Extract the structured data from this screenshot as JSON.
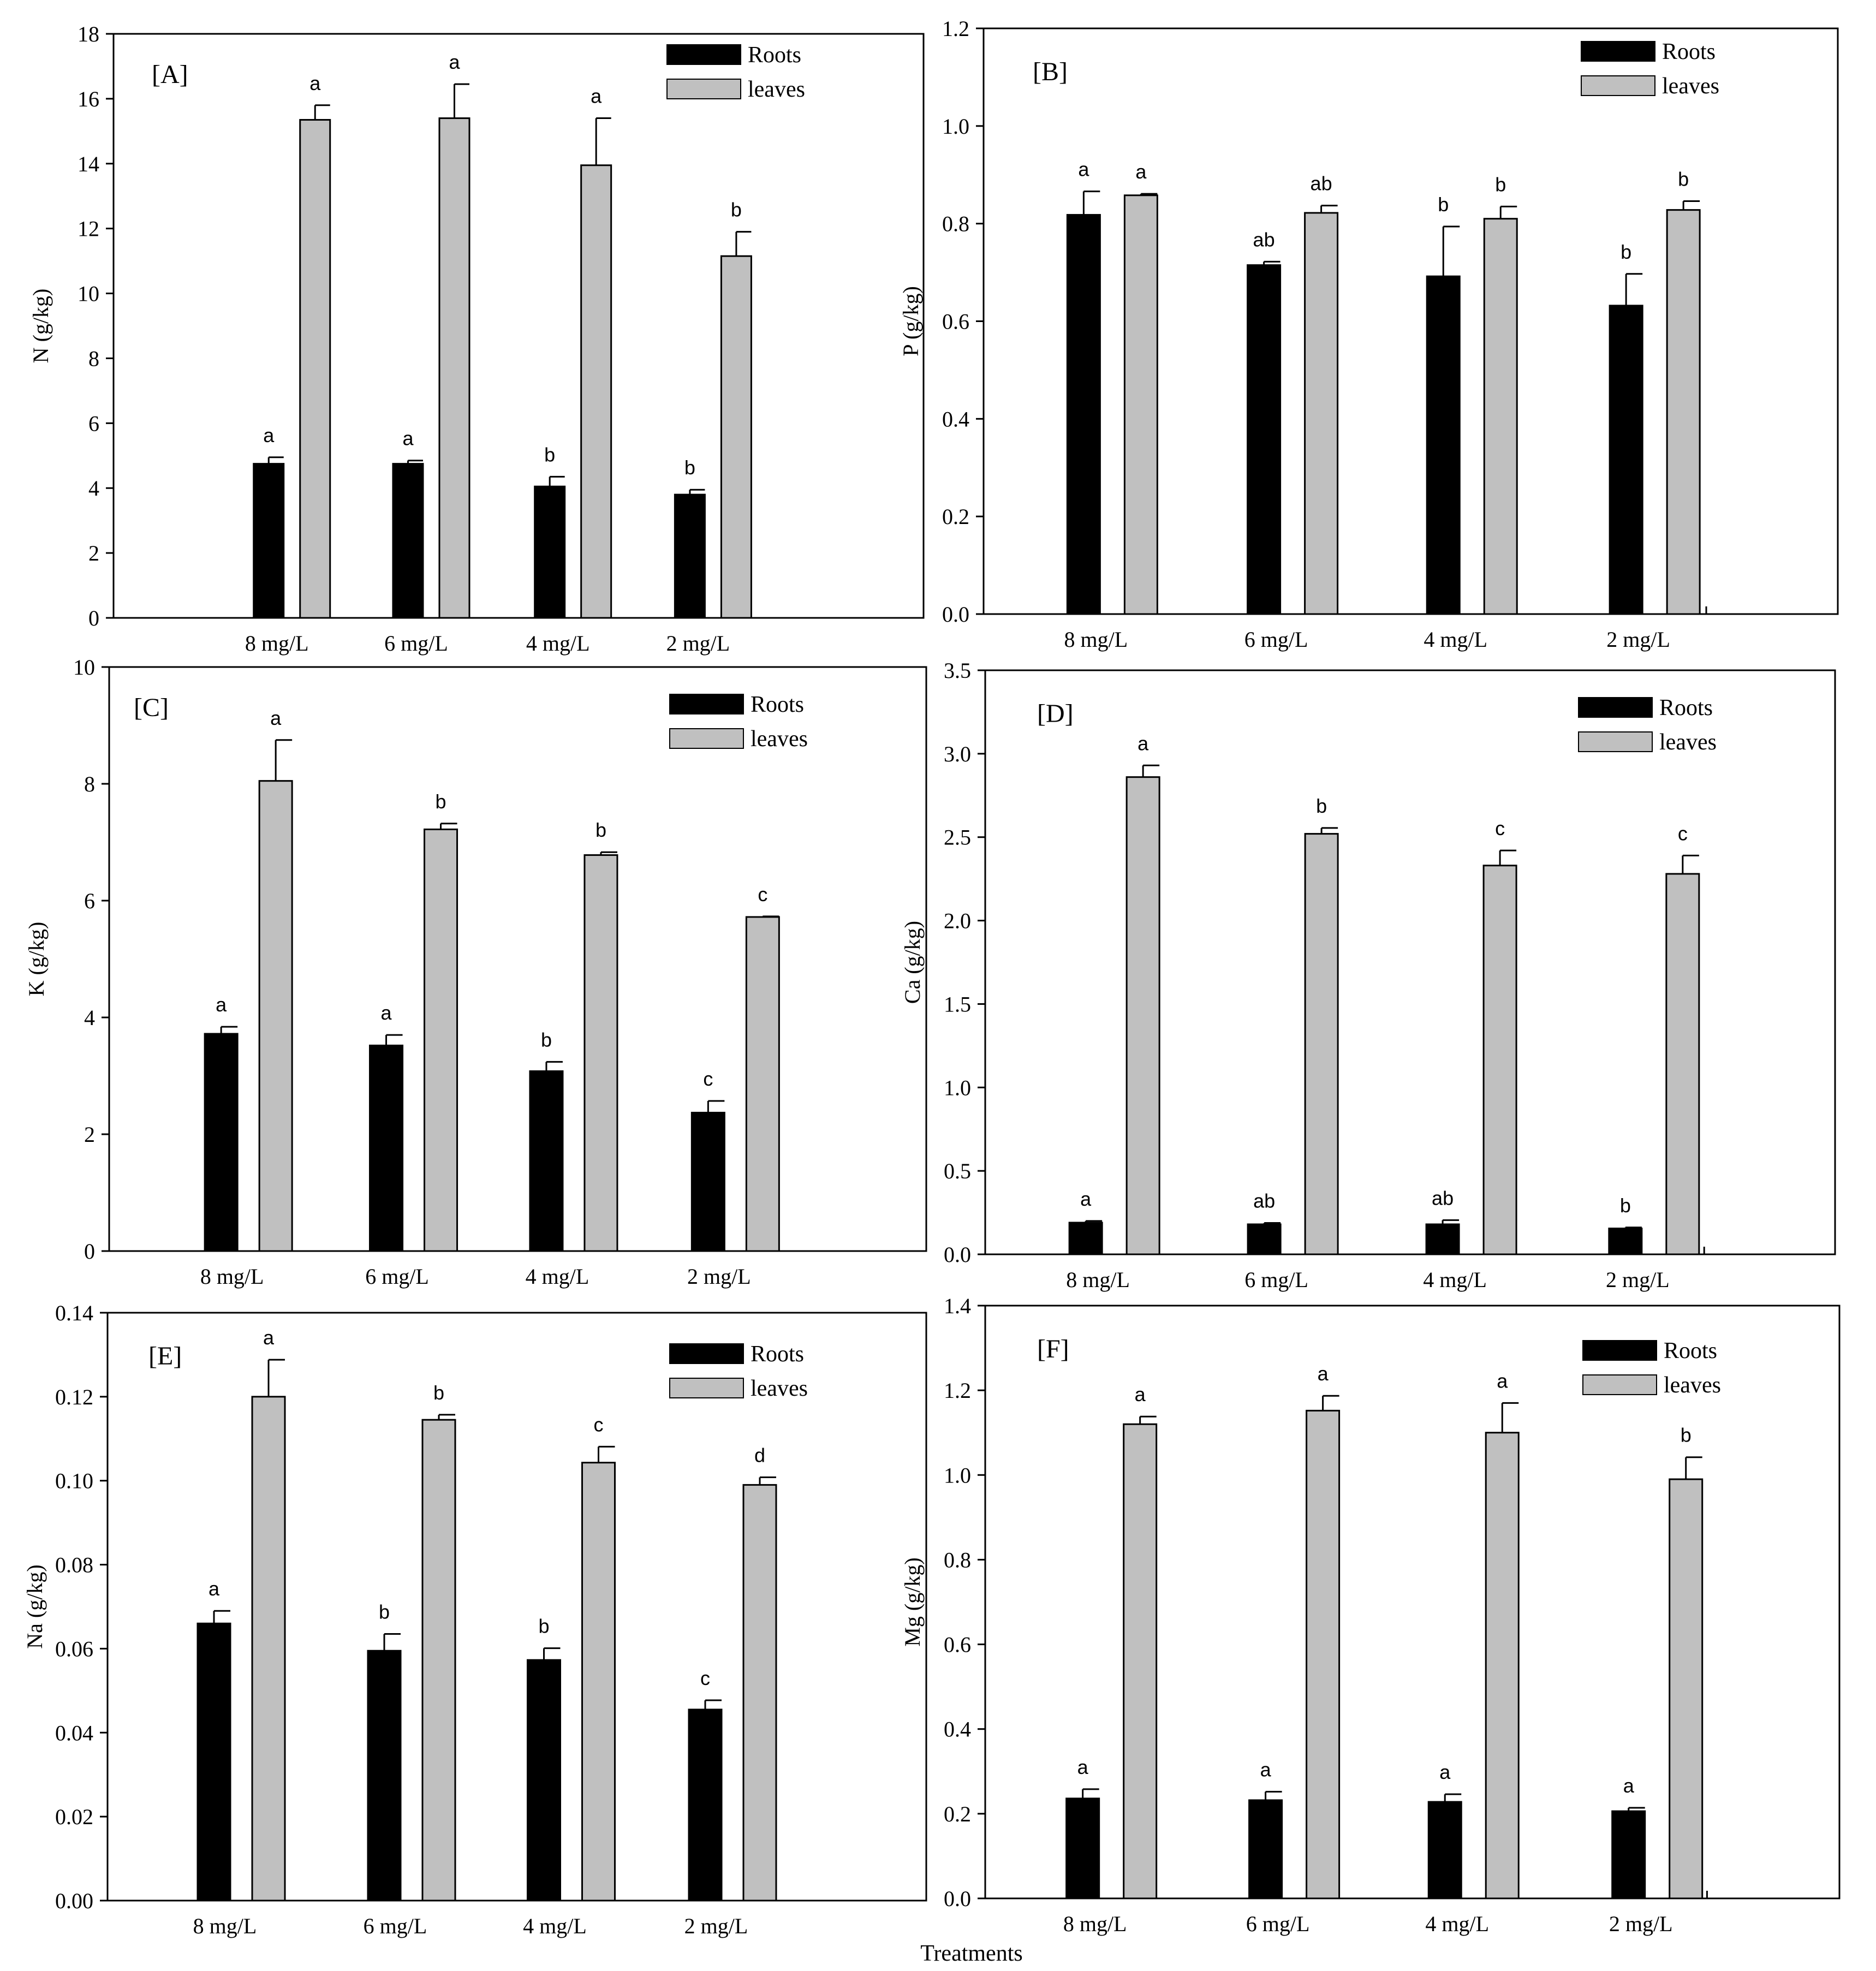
{
  "figure": {
    "x_title": "Treatments",
    "categories": [
      "8 mg/L",
      "6 mg/L",
      "4 mg/L",
      "2 mg/L"
    ],
    "legend": [
      {
        "name": "Roots",
        "color": "#000000"
      },
      {
        "name": "leaves",
        "color": "#c0c0c0"
      }
    ]
  },
  "chart_data": [
    {
      "type": "bar",
      "panel": "[A]",
      "ylabel": "N (g/kg)",
      "ylim": [
        0,
        18
      ],
      "yticks": [
        0,
        2,
        4,
        6,
        8,
        10,
        12,
        14,
        16,
        18
      ],
      "categories": [
        "8 mg/L",
        "6 mg/L",
        "4 mg/L",
        "2 mg/L"
      ],
      "legend_position": "top-right",
      "series": [
        {
          "name": "Roots",
          "values": [
            4.75,
            4.75,
            4.05,
            3.8
          ],
          "errors": [
            0.2,
            0.1,
            0.3,
            0.15
          ],
          "labels": [
            "a",
            "a",
            "b",
            "b"
          ]
        },
        {
          "name": "leaves",
          "values": [
            15.35,
            15.4,
            13.95,
            11.15
          ],
          "errors": [
            0.45,
            1.05,
            1.45,
            0.75
          ],
          "labels": [
            "a",
            "a",
            "a",
            "b"
          ]
        }
      ]
    },
    {
      "type": "bar",
      "panel": "[B]",
      "ylabel": "P (g/kg)",
      "ylim": [
        0,
        1.2
      ],
      "yticks": [
        0.0,
        0.2,
        0.4,
        0.6,
        0.8,
        1.0,
        1.2
      ],
      "ytick_labels": [
        "0.0",
        "0.2",
        "0.4",
        "0.6",
        "0.8",
        "1.0",
        "1.2"
      ],
      "categories": [
        "8 mg/L",
        "6 mg/L",
        "4 mg/L",
        "2 mg/L"
      ],
      "legend_position": "top-right",
      "series": [
        {
          "name": "Roots",
          "values": [
            0.818,
            0.715,
            0.692,
            0.632
          ],
          "errors": [
            0.048,
            0.007,
            0.102,
            0.065
          ],
          "labels": [
            "a",
            "ab",
            "b",
            "b"
          ]
        },
        {
          "name": "leaves",
          "values": [
            0.858,
            0.822,
            0.81,
            0.828
          ],
          "errors": [
            0.003,
            0.015,
            0.025,
            0.018
          ],
          "labels": [
            "a",
            "ab",
            "b",
            "b"
          ]
        }
      ]
    },
    {
      "type": "bar",
      "panel": "[C]",
      "ylabel": "K (g/kg)",
      "ylim": [
        0,
        10
      ],
      "yticks": [
        0,
        2,
        4,
        6,
        8,
        10
      ],
      "categories": [
        "8 mg/L",
        "6 mg/L",
        "4 mg/L",
        "2 mg/L"
      ],
      "legend_position": "top-right",
      "series": [
        {
          "name": "Roots",
          "values": [
            3.72,
            3.52,
            3.08,
            2.37
          ],
          "errors": [
            0.12,
            0.18,
            0.16,
            0.2
          ],
          "labels": [
            "a",
            "a",
            "b",
            "c"
          ]
        },
        {
          "name": "leaves",
          "values": [
            8.05,
            7.22,
            6.78,
            5.72
          ],
          "errors": [
            0.7,
            0.1,
            0.05,
            0.01
          ],
          "labels": [
            "a",
            "b",
            "b",
            "c"
          ]
        }
      ]
    },
    {
      "type": "bar",
      "panel": "[D]",
      "ylabel": "Ca (g/kg)",
      "ylim": [
        0,
        3.5
      ],
      "yticks": [
        0,
        0.5,
        1.0,
        1.5,
        2.0,
        2.5,
        3.0,
        3.5
      ],
      "ytick_labels": [
        "0.0",
        "0.5",
        "1.0",
        "1.5",
        "2.0",
        "2.5",
        "3.0",
        "3.5"
      ],
      "categories": [
        "8 mg/L",
        "6 mg/L",
        "4 mg/L",
        "2 mg/L"
      ],
      "legend_position": "top-right",
      "series": [
        {
          "name": "Roots",
          "values": [
            0.19,
            0.18,
            0.18,
            0.155
          ],
          "errors": [
            0.01,
            0.008,
            0.025,
            0.006
          ],
          "labels": [
            "a",
            "ab",
            "ab",
            "b"
          ]
        },
        {
          "name": "leaves",
          "values": [
            2.86,
            2.52,
            2.33,
            2.28
          ],
          "errors": [
            0.07,
            0.035,
            0.09,
            0.11
          ],
          "labels": [
            "a",
            "b",
            "c",
            "c"
          ]
        }
      ]
    },
    {
      "type": "bar",
      "panel": "[E]",
      "ylabel": "Na (g/kg)",
      "ylim": [
        0,
        0.14
      ],
      "yticks": [
        0,
        0.02,
        0.04,
        0.06,
        0.08,
        0.1,
        0.12,
        0.14
      ],
      "ytick_labels": [
        "0.00",
        "0.02",
        "0.04",
        "0.06",
        "0.08",
        "0.10",
        "0.12",
        "0.14"
      ],
      "categories": [
        "8 mg/L",
        "6 mg/L",
        "4 mg/L",
        "2 mg/L"
      ],
      "legend_position": "top-right",
      "series": [
        {
          "name": "Roots",
          "values": [
            0.066,
            0.0595,
            0.0573,
            0.0455
          ],
          "errors": [
            0.003,
            0.004,
            0.0028,
            0.0022
          ],
          "labels": [
            "a",
            "b",
            "b",
            "c"
          ]
        },
        {
          "name": "leaves",
          "values": [
            0.12,
            0.1145,
            0.1043,
            0.099
          ],
          "errors": [
            0.0088,
            0.0012,
            0.0038,
            0.0018
          ],
          "labels": [
            "a",
            "b",
            "c",
            "d"
          ]
        }
      ]
    },
    {
      "type": "bar",
      "panel": "[F]",
      "ylabel": "Mg (g/kg)",
      "ylim": [
        0,
        1.4
      ],
      "yticks": [
        0,
        0.2,
        0.4,
        0.6,
        0.8,
        1.0,
        1.2,
        1.4
      ],
      "ytick_labels": [
        "0.0",
        "0.2",
        "0.4",
        "0.6",
        "0.8",
        "1.0",
        "1.2",
        "1.4"
      ],
      "categories": [
        "8 mg/L",
        "6 mg/L",
        "4 mg/L",
        "2 mg/L"
      ],
      "legend_position": "top-right",
      "series": [
        {
          "name": "Roots",
          "values": [
            0.236,
            0.232,
            0.228,
            0.206
          ],
          "errors": [
            0.022,
            0.02,
            0.018,
            0.008
          ],
          "labels": [
            "a",
            "a",
            "a",
            "a"
          ]
        },
        {
          "name": "leaves",
          "values": [
            1.12,
            1.152,
            1.1,
            0.99
          ],
          "errors": [
            0.018,
            0.035,
            0.07,
            0.052
          ],
          "labels": [
            "a",
            "a",
            "a",
            "b"
          ]
        }
      ]
    }
  ]
}
